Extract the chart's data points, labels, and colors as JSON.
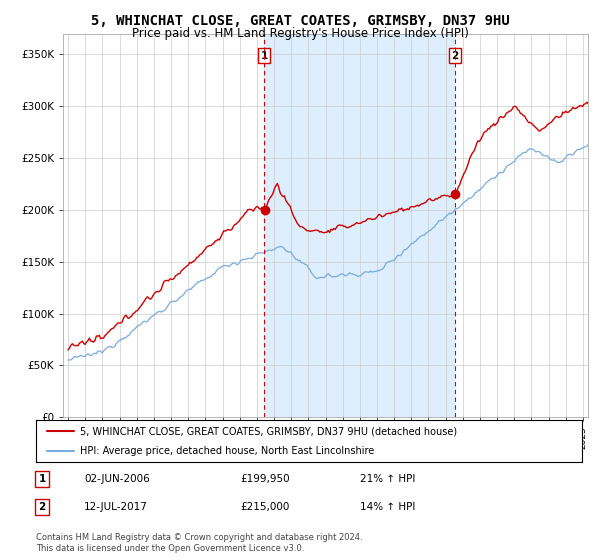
{
  "title": "5, WHINCHAT CLOSE, GREAT COATES, GRIMSBY, DN37 9HU",
  "subtitle": "Price paid vs. HM Land Registry's House Price Index (HPI)",
  "title_fontsize": 10,
  "subtitle_fontsize": 8.5,
  "ylim": [
    0,
    370000
  ],
  "yticks": [
    0,
    50000,
    100000,
    150000,
    200000,
    250000,
    300000,
    350000
  ],
  "ytick_labels": [
    "£0",
    "£50K",
    "£100K",
    "£150K",
    "£200K",
    "£250K",
    "£300K",
    "£350K"
  ],
  "xlim_start": 1994.7,
  "xlim_end": 2025.3,
  "red_color": "#cc0000",
  "blue_color": "#7aabdb",
  "shade_color": "#ddeeff",
  "grid_color": "#cccccc",
  "background_color": "#ffffff",
  "sale1_year": 2006.42,
  "sale1_price": 199950,
  "sale1_label": "1",
  "sale2_year": 2017.54,
  "sale2_price": 215000,
  "sale2_label": "2",
  "legend_line1": "5, WHINCHAT CLOSE, GREAT COATES, GRIMSBY, DN37 9HU (detached house)",
  "legend_line2": "HPI: Average price, detached house, North East Lincolnshire",
  "table_row1_num": "1",
  "table_row1_date": "02-JUN-2006",
  "table_row1_price": "£199,950",
  "table_row1_hpi": "21% ↑ HPI",
  "table_row2_num": "2",
  "table_row2_date": "12-JUL-2017",
  "table_row2_price": "£215,000",
  "table_row2_hpi": "14% ↑ HPI",
  "footer": "Contains HM Land Registry data © Crown copyright and database right 2024.\nThis data is licensed under the Open Government Licence v3.0."
}
